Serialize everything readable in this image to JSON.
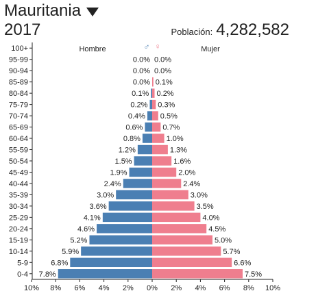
{
  "header": {
    "country": "Mauritania",
    "year": "2017",
    "population_label": "Población:",
    "population_value": "4,282,582"
  },
  "legend": {
    "male_symbol": "♂",
    "female_symbol": "♀"
  },
  "colors": {
    "male": "#4a7fb3",
    "female": "#ef7e8e"
  },
  "chart_data": {
    "type": "bar",
    "orientation": "horizontal",
    "subtype": "population-pyramid",
    "categories": [
      "100+",
      "95-99",
      "90-94",
      "85-89",
      "80-84",
      "75-79",
      "70-74",
      "65-69",
      "60-64",
      "55-59",
      "50-54",
      "45-49",
      "40-44",
      "35-39",
      "30-34",
      "25-29",
      "20-24",
      "15-19",
      "10-14",
      "5-9",
      "0-4"
    ],
    "series": [
      {
        "name": "Hombre",
        "values": [
          0.0,
          0.0,
          0.0,
          0.0,
          0.1,
          0.2,
          0.4,
          0.6,
          0.8,
          1.2,
          1.5,
          1.9,
          2.4,
          3.0,
          3.6,
          4.1,
          4.6,
          5.2,
          5.9,
          6.8,
          7.8
        ],
        "labels": [
          "",
          "0.0%",
          "0.0%",
          "0.0%",
          "0.1%",
          "0.2%",
          "0.4%",
          "0.6%",
          "0.8%",
          "1.2%",
          "1.5%",
          "1.9%",
          "2.4%",
          "3.0%",
          "3.6%",
          "4.1%",
          "4.6%",
          "5.2%",
          "5.9%",
          "6.8%",
          "7.8%"
        ]
      },
      {
        "name": "Mujer",
        "values": [
          0.0,
          0.0,
          0.0,
          0.1,
          0.2,
          0.3,
          0.5,
          0.7,
          1.0,
          1.3,
          1.6,
          2.0,
          2.4,
          3.0,
          3.5,
          4.0,
          4.5,
          5.0,
          5.7,
          6.6,
          7.5
        ],
        "labels": [
          "",
          "0.0%",
          "0.0%",
          "0.1%",
          "0.2%",
          "0.3%",
          "0.5%",
          "0.7%",
          "1.0%",
          "1.3%",
          "1.6%",
          "2.0%",
          "2.4%",
          "3.0%",
          "3.5%",
          "4.0%",
          "4.5%",
          "5.0%",
          "5.7%",
          "6.6%",
          "7.5%"
        ]
      }
    ],
    "xlim": [
      -10,
      10
    ],
    "x_ticks": [
      "10%",
      "8%",
      "6%",
      "4%",
      "2%",
      "0%",
      "2%",
      "4%",
      "6%",
      "8%",
      "10%"
    ],
    "grid": false
  }
}
